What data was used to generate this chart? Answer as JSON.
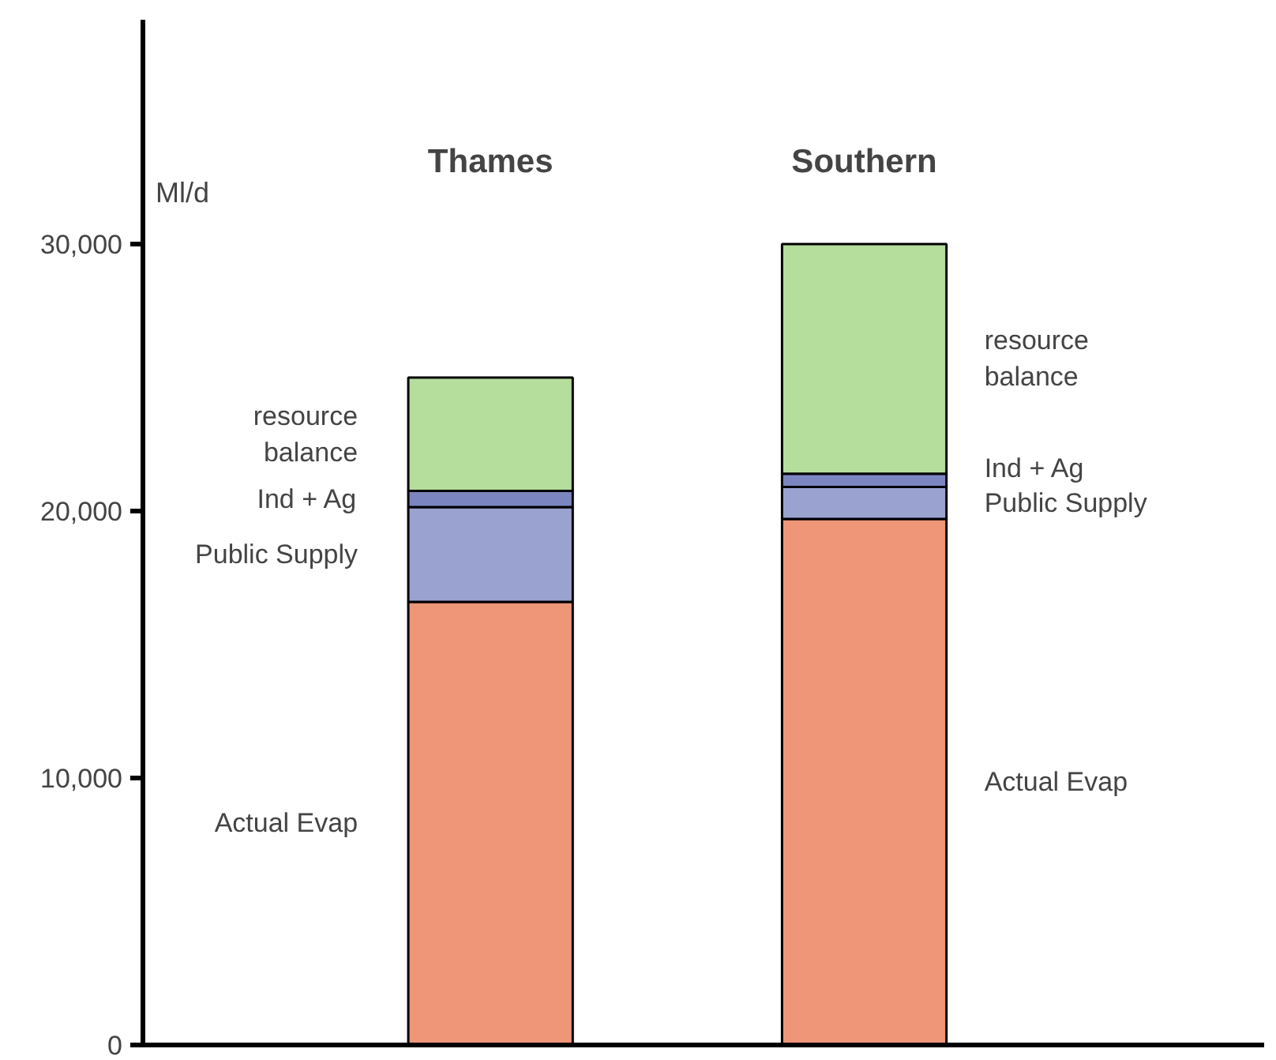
{
  "chart_data": {
    "type": "bar",
    "stacked": true,
    "ylabel": "Ml/d",
    "categories": [
      "Thames",
      "Southern"
    ],
    "series": [
      {
        "name": "Actual Evap",
        "color": "#ee9677",
        "values": [
          16600,
          19700
        ]
      },
      {
        "name": "Public Supply",
        "color": "#9aa3d0",
        "values": [
          3550,
          1200
        ]
      },
      {
        "name": "Ind + Ag",
        "color": "#7b86c0",
        "values": [
          600,
          500
        ]
      },
      {
        "name": "resource balance",
        "color": "#b5dd9b",
        "values": [
          4250,
          8600
        ]
      }
    ],
    "ylim": [
      0,
      38400
    ],
    "yticks": [
      0,
      {
        "value": 10000,
        "label": "10,000"
      },
      {
        "value": 20000,
        "label": "20,000"
      },
      {
        "value": 30000,
        "label": "30,000"
      }
    ],
    "grid": false
  }
}
